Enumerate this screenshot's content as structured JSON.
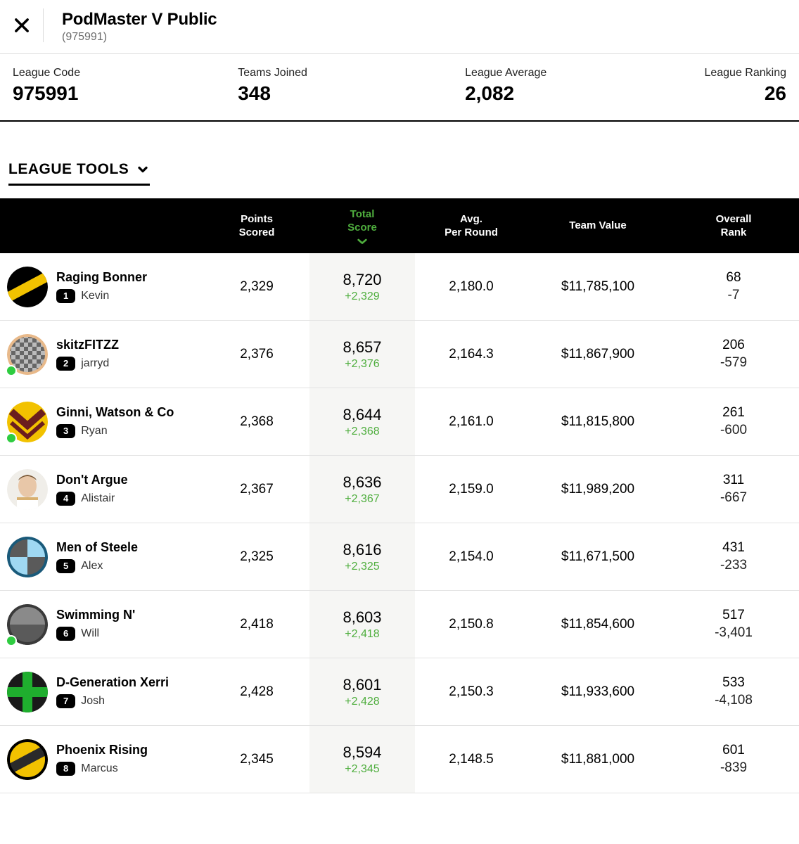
{
  "header": {
    "title": "PodMaster V Public",
    "subtitle": "(975991)"
  },
  "stats": [
    {
      "label": "League Code",
      "value": "975991"
    },
    {
      "label": "Teams Joined",
      "value": "348"
    },
    {
      "label": "League Average",
      "value": "2,082"
    },
    {
      "label": "League Ranking",
      "value": "26"
    }
  ],
  "tools_label": "LEAGUE TOOLS",
  "columns": {
    "points": "Points\nScored",
    "total": "Total\nScore",
    "avg": "Avg.\nPer Round",
    "value": "Team Value",
    "overall": "Overall\nRank"
  },
  "colors": {
    "sort_active": "#4fae3e",
    "online": "#2ecc40",
    "total_bg": "#f6f6f4"
  },
  "rows": [
    {
      "rank": "1",
      "team": "Raging Bonner",
      "manager": "Kevin",
      "online": false,
      "avatar": "black-yellow-stripe",
      "points": "2,329",
      "total": "8,720",
      "total_delta": "+2,329",
      "avg": "2,180.0",
      "value": "$11,785,100",
      "overall": "68",
      "overall_delta": "-7"
    },
    {
      "rank": "2",
      "team": "skitzFITZZ",
      "manager": "jarryd",
      "online": true,
      "avatar": "checker",
      "points": "2,376",
      "total": "8,657",
      "total_delta": "+2,376",
      "avg": "2,164.3",
      "value": "$11,867,900",
      "overall": "206",
      "overall_delta": "-579"
    },
    {
      "rank": "3",
      "team": "Ginni, Watson & Co",
      "manager": "Ryan",
      "online": true,
      "avatar": "maroon-chevron",
      "points": "2,368",
      "total": "8,644",
      "total_delta": "+2,368",
      "avg": "2,161.0",
      "value": "$11,815,800",
      "overall": "261",
      "overall_delta": "-600"
    },
    {
      "rank": "4",
      "team": "Don't Argue",
      "manager": "Alistair",
      "online": false,
      "avatar": "face",
      "points": "2,367",
      "total": "8,636",
      "total_delta": "+2,367",
      "avg": "2,159.0",
      "value": "$11,989,200",
      "overall": "311",
      "overall_delta": "-667"
    },
    {
      "rank": "5",
      "team": "Men of Steele",
      "manager": "Alex",
      "online": false,
      "avatar": "blue-quarters",
      "points": "2,325",
      "total": "8,616",
      "total_delta": "+2,325",
      "avg": "2,154.0",
      "value": "$11,671,500",
      "overall": "431",
      "overall_delta": "-233"
    },
    {
      "rank": "6",
      "team": "Swimming N'",
      "manager": "Will",
      "online": true,
      "avatar": "gray-half",
      "points": "2,418",
      "total": "8,603",
      "total_delta": "+2,418",
      "avg": "2,150.8",
      "value": "$11,854,600",
      "overall": "517",
      "overall_delta": "-3,401"
    },
    {
      "rank": "7",
      "team": "D-Generation Xerri",
      "manager": "Josh",
      "online": false,
      "avatar": "green-cross",
      "points": "2,428",
      "total": "8,601",
      "total_delta": "+2,428",
      "avg": "2,150.3",
      "value": "$11,933,600",
      "overall": "533",
      "overall_delta": "-4,108"
    },
    {
      "rank": "8",
      "team": "Phoenix Rising",
      "manager": "Marcus",
      "online": false,
      "avatar": "yellow-diag",
      "points": "2,345",
      "total": "8,594",
      "total_delta": "+2,345",
      "avg": "2,148.5",
      "value": "$11,881,000",
      "overall": "601",
      "overall_delta": "-839"
    }
  ]
}
